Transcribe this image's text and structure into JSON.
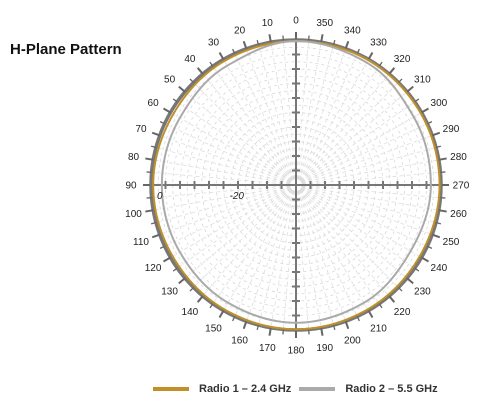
{
  "chart_data": {
    "type": "polar-line",
    "title": "H-Plane Pattern",
    "angle_labels": [
      "0",
      "10",
      "20",
      "30",
      "40",
      "50",
      "60",
      "70",
      "80",
      "90",
      "100",
      "110",
      "120",
      "130",
      "140",
      "150",
      "160",
      "170",
      "180",
      "190",
      "200",
      "210",
      "220",
      "230",
      "240",
      "250",
      "260",
      "270",
      "280",
      "290",
      "300",
      "310",
      "320",
      "330",
      "340",
      "350"
    ],
    "angle_direction": "counterclockwise",
    "angle_zero": "top",
    "radial_labels": [
      "0",
      "-20"
    ],
    "radial_range_db": [
      -40,
      0
    ],
    "grid": true,
    "legend_position": "bottom",
    "series": [
      {
        "name": "Radio 1 – 2.4 GHz",
        "color": "#c0902a",
        "angles_deg": [
          0,
          30,
          60,
          90,
          120,
          150,
          180,
          210,
          240,
          270,
          300,
          330
        ],
        "gain_db": [
          -0.3,
          -0.5,
          -0.9,
          -0.6,
          -0.7,
          -0.4,
          -0.2,
          -0.4,
          -0.6,
          -0.4,
          -0.3,
          -0.2
        ]
      },
      {
        "name": "Radio 2 – 5.5 GHz",
        "color": "#aaaaaa",
        "angles_deg": [
          0,
          30,
          60,
          90,
          120,
          150,
          180,
          210,
          240,
          270,
          300,
          330
        ],
        "gain_db": [
          -0.3,
          -2.0,
          -3.0,
          -3.0,
          -3.0,
          -2.5,
          -2.0,
          -2.5,
          -3.5,
          -2.8,
          -2.5,
          -1.0
        ]
      }
    ]
  }
}
